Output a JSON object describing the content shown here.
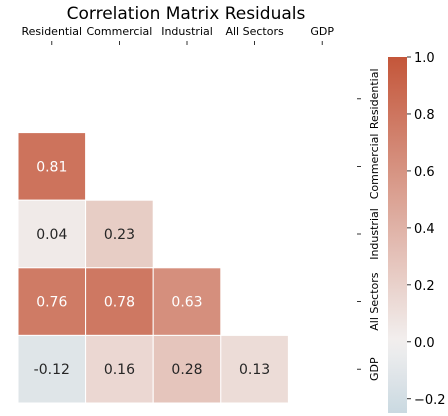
{
  "chart_data": {
    "type": "heatmap",
    "title": "Correlation Matrix Residuals",
    "x_labels": [
      "Residential",
      "Commercial",
      "Industrial",
      "All Sectors",
      "GDP"
    ],
    "y_labels": [
      "Residential",
      "Commercial",
      "Industrial",
      "All Sectors",
      "GDP"
    ],
    "mask": "upper triangle including diagonal",
    "cells": [
      {
        "row": 1,
        "col": 0,
        "value": 0.81,
        "label": "0.81"
      },
      {
        "row": 2,
        "col": 0,
        "value": 0.04,
        "label": "0.04"
      },
      {
        "row": 2,
        "col": 1,
        "value": 0.23,
        "label": "0.23"
      },
      {
        "row": 3,
        "col": 0,
        "value": 0.76,
        "label": "0.76"
      },
      {
        "row": 3,
        "col": 1,
        "value": 0.78,
        "label": "0.78"
      },
      {
        "row": 3,
        "col": 2,
        "value": 0.63,
        "label": "0.63"
      },
      {
        "row": 4,
        "col": 0,
        "value": -0.12,
        "label": "-0.12"
      },
      {
        "row": 4,
        "col": 1,
        "value": 0.16,
        "label": "0.16"
      },
      {
        "row": 4,
        "col": 2,
        "value": 0.28,
        "label": "0.28"
      },
      {
        "row": 4,
        "col": 3,
        "value": 0.13,
        "label": "0.13"
      }
    ],
    "colorbar": {
      "min": -0.25,
      "max": 1.0,
      "ticks": [
        1.0,
        0.8,
        0.6,
        0.4,
        0.2,
        0.0,
        -0.2
      ],
      "tick_labels": [
        "1.0",
        "0.8",
        "0.6",
        "0.4",
        "0.2",
        "0.0",
        "−0.2"
      ],
      "neg_color": "#c2d4de",
      "mid_color": "#f2f0ef",
      "pos_color": "#c4563a"
    }
  }
}
